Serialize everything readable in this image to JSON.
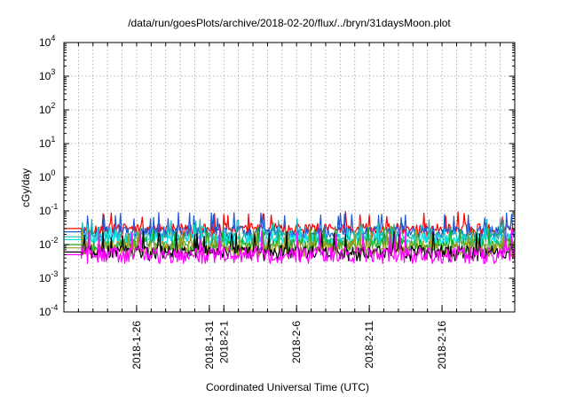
{
  "chart_data": {
    "type": "line",
    "title": "/data/run/goesPlots/archive/2018-02-20/flux/../bryn/31daysMoon.plot",
    "xlabel": "Coordinated Universal Time (UTC)",
    "ylabel": "cGy/day",
    "yscale": "log",
    "ylim": [
      0.0001,
      10000
    ],
    "yticks": [
      {
        "value": 0.0001,
        "base": "10",
        "exp": "-4"
      },
      {
        "value": 0.001,
        "base": "10",
        "exp": "-3"
      },
      {
        "value": 0.01,
        "base": "10",
        "exp": "-2"
      },
      {
        "value": 0.1,
        "base": "10",
        "exp": "-1"
      },
      {
        "value": 1,
        "base": "10",
        "exp": "0"
      },
      {
        "value": 10,
        "base": "10",
        "exp": "1"
      },
      {
        "value": 100,
        "base": "10",
        "exp": "2"
      },
      {
        "value": 1000,
        "base": "10",
        "exp": "3"
      },
      {
        "value": 10000,
        "base": "10",
        "exp": "4"
      }
    ],
    "xlim_days": [
      0,
      31
    ],
    "xunit": "days since 2018-01-21 00:00 UTC",
    "xticks": [
      {
        "day": 5,
        "label": "2018-1-26"
      },
      {
        "day": 10,
        "label": "2018-1-31"
      },
      {
        "day": 11,
        "label": "2018-2-1"
      },
      {
        "day": 16,
        "label": "2018-2-6"
      },
      {
        "day": 21,
        "label": "2018-2-11"
      },
      {
        "day": 26,
        "label": "2018-2-16"
      }
    ],
    "data_start_day": 1.2,
    "series": [
      {
        "name": "red",
        "color": "#ff0000",
        "base": 0.03,
        "var": 0.35,
        "spike": 0.1,
        "seed": 11
      },
      {
        "name": "blue",
        "color": "#1e5ad2",
        "base": 0.024,
        "var": 0.4,
        "spike": 0.09,
        "seed": 23
      },
      {
        "name": "teal",
        "color": "#17b5b0",
        "base": 0.017,
        "var": 0.4,
        "spike": 0.06,
        "seed": 37
      },
      {
        "name": "cyan",
        "color": "#00e5e5",
        "base": 0.014,
        "var": 0.4,
        "spike": 0.04,
        "seed": 41
      },
      {
        "name": "green",
        "color": "#22aa22",
        "base": 0.01,
        "var": 0.45,
        "spike": 0.035,
        "seed": 53
      },
      {
        "name": "olive",
        "color": "#9a9a20",
        "base": 0.008,
        "var": 0.45,
        "spike": 0.03,
        "seed": 67
      },
      {
        "name": "black",
        "color": "#000000",
        "base": 0.006,
        "var": 0.45,
        "spike": 0.025,
        "seed": 71
      },
      {
        "name": "magenta",
        "color": "#ff00ff",
        "base": 0.005,
        "var": 0.55,
        "spike": 0.03,
        "seed": 89
      }
    ]
  }
}
